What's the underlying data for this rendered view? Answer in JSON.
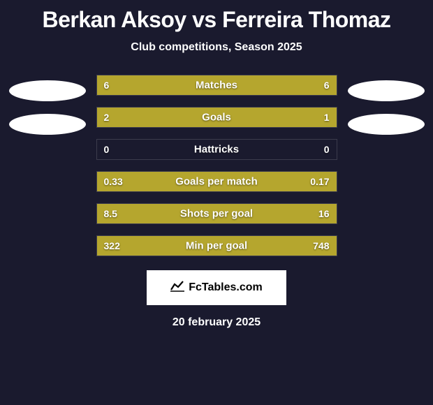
{
  "title": "Berkan Aksoy vs Ferreira Thomaz",
  "subtitle": "Club competitions, Season 2025",
  "colors": {
    "left": "#b5a62e",
    "right": "#b5a62e",
    "background": "#1a1a2e"
  },
  "stats": [
    {
      "label": "Matches",
      "left_val": "6",
      "right_val": "6",
      "left_pct": 50,
      "right_pct": 50
    },
    {
      "label": "Goals",
      "left_val": "2",
      "right_val": "1",
      "left_pct": 66,
      "right_pct": 34
    },
    {
      "label": "Hattricks",
      "left_val": "0",
      "right_val": "0",
      "left_pct": 0,
      "right_pct": 0
    },
    {
      "label": "Goals per match",
      "left_val": "0.33",
      "right_val": "0.17",
      "left_pct": 66,
      "right_pct": 34
    },
    {
      "label": "Shots per goal",
      "left_val": "8.5",
      "right_val": "16",
      "left_pct": 34,
      "right_pct": 66
    },
    {
      "label": "Min per goal",
      "left_val": "322",
      "right_val": "748",
      "left_pct": 30,
      "right_pct": 70
    }
  ],
  "logo_text": "FcTables.com",
  "date": "20 february 2025"
}
